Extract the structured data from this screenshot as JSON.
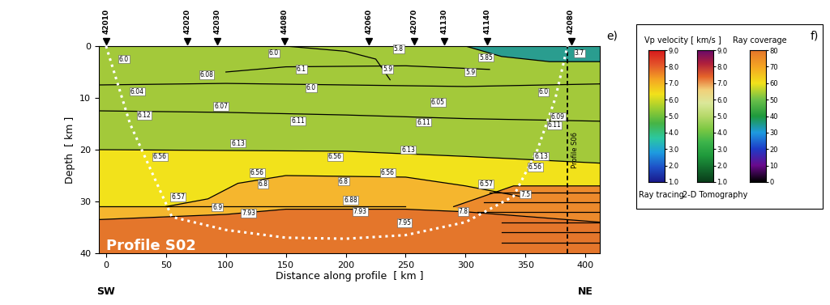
{
  "chart_data": {
    "type": "velocity_model",
    "title": "Profile S02",
    "x_label": "Distance along profile  [ km ]",
    "y_label": "Depth  [ km ]",
    "xlim": [
      -6,
      412
    ],
    "ylim": [
      40,
      0
    ],
    "xticks": [
      0,
      50,
      100,
      150,
      200,
      250,
      300,
      350,
      400
    ],
    "yticks": [
      0,
      10,
      20,
      30,
      40
    ],
    "ends": {
      "left": "SW",
      "right": "NE"
    },
    "panel_labels": [
      "e)",
      "f)"
    ],
    "stations": [
      {
        "name": "42010",
        "x": 0
      },
      {
        "name": "42020",
        "x": 68
      },
      {
        "name": "42030",
        "x": 93
      },
      {
        "name": "44080",
        "x": 149
      },
      {
        "name": "42060",
        "x": 219
      },
      {
        "name": "42070",
        "x": 257
      },
      {
        "name": "41130",
        "x": 282
      },
      {
        "name": "41140",
        "x": 318
      },
      {
        "name": "42080",
        "x": 388
      }
    ],
    "regions": [
      {
        "color": "#a3c93a",
        "points": [
          [
            -6,
            0
          ],
          [
            412,
            0
          ],
          [
            412,
            22.6
          ],
          [
            300,
            21.3
          ],
          [
            200,
            20.3
          ],
          [
            -6,
            20
          ]
        ]
      },
      {
        "color": "#f2e21b",
        "points": [
          [
            -6,
            20
          ],
          [
            200,
            20.3
          ],
          [
            300,
            21.3
          ],
          [
            412,
            22.6
          ],
          [
            412,
            29
          ],
          [
            250,
            31
          ],
          [
            -6,
            31
          ]
        ]
      },
      {
        "color": "#f5b62e",
        "points": [
          [
            -6,
            31
          ],
          [
            50,
            31
          ],
          [
            85,
            29.5
          ],
          [
            110,
            26.5
          ],
          [
            150,
            25
          ],
          [
            250,
            25.3
          ],
          [
            300,
            27
          ],
          [
            345,
            29
          ],
          [
            412,
            29
          ],
          [
            412,
            34
          ],
          [
            300,
            32
          ],
          [
            250,
            31.5
          ],
          [
            150,
            31.5
          ],
          [
            100,
            32.5
          ],
          [
            -6,
            33.5
          ]
        ]
      },
      {
        "color": "#e4762b",
        "points": [
          [
            -6,
            33.5
          ],
          [
            100,
            32.5
          ],
          [
            150,
            31.5
          ],
          [
            250,
            31.5
          ],
          [
            300,
            32
          ],
          [
            412,
            34
          ],
          [
            412,
            40
          ],
          [
            -6,
            40
          ]
        ]
      },
      {
        "color": "#ec8a2c",
        "points": [
          [
            290,
            31
          ],
          [
            340,
            27
          ],
          [
            412,
            27
          ],
          [
            412,
            34
          ],
          [
            300,
            32
          ]
        ]
      },
      {
        "color": "#2a9d8f",
        "points": [
          [
            300,
            0
          ],
          [
            330,
            2
          ],
          [
            370,
            3
          ],
          [
            412,
            3
          ],
          [
            412,
            0
          ]
        ]
      }
    ],
    "boundaries": [
      [
        [
          -6,
          7.5
        ],
        [
          100,
          7.2
        ],
        [
          200,
          7.5
        ],
        [
          300,
          7.8
        ],
        [
          412,
          7.3
        ]
      ],
      [
        [
          -6,
          12.5
        ],
        [
          100,
          12.8
        ],
        [
          200,
          13.3
        ],
        [
          300,
          14
        ],
        [
          412,
          14.5
        ]
      ],
      [
        [
          -6,
          20
        ],
        [
          200,
          20.3
        ],
        [
          300,
          21.3
        ],
        [
          412,
          22.6
        ]
      ],
      [
        [
          50,
          31
        ],
        [
          85,
          29.5
        ],
        [
          110,
          26.5
        ],
        [
          150,
          25
        ],
        [
          250,
          25.3
        ],
        [
          300,
          27
        ],
        [
          345,
          29
        ]
      ],
      [
        [
          -6,
          31
        ],
        [
          120,
          31
        ],
        [
          250,
          31
        ]
      ],
      [
        [
          -6,
          33.5
        ],
        [
          100,
          32.5
        ],
        [
          150,
          31.5
        ],
        [
          250,
          31.5
        ],
        [
          300,
          32
        ],
        [
          412,
          34
        ]
      ],
      [
        [
          290,
          31
        ],
        [
          340,
          27
        ],
        [
          412,
          27
        ]
      ],
      [
        [
          300,
          0
        ],
        [
          330,
          2
        ],
        [
          370,
          3
        ],
        [
          412,
          3
        ]
      ],
      [
        [
          150,
          0
        ],
        [
          200,
          1
        ],
        [
          225,
          2.5
        ],
        [
          237,
          6.5
        ]
      ],
      [
        [
          100,
          5
        ],
        [
          150,
          4
        ],
        [
          250,
          3.8
        ],
        [
          320,
          4.5
        ]
      ],
      [
        [
          320,
          28.3
        ],
        [
          412,
          28.3
        ]
      ],
      [
        [
          315,
          30.2
        ],
        [
          412,
          30.2
        ]
      ],
      [
        [
          310,
          32
        ],
        [
          412,
          32
        ]
      ],
      [
        [
          330,
          34.1
        ],
        [
          412,
          34.1
        ]
      ],
      [
        [
          330,
          35.9
        ],
        [
          412,
          35.9
        ]
      ],
      [
        [
          330,
          38
        ],
        [
          412,
          38
        ]
      ]
    ],
    "coverage_line": [
      [
        0,
        0
      ],
      [
        20,
        15
      ],
      [
        55,
        33
      ],
      [
        100,
        35.5
      ],
      [
        150,
        37
      ],
      [
        200,
        37.2
      ],
      [
        250,
        36.5
      ],
      [
        300,
        34
      ],
      [
        340,
        29
      ],
      [
        360,
        20
      ],
      [
        375,
        10
      ],
      [
        385,
        0
      ]
    ],
    "profile_crossing": {
      "name": "Profile S06",
      "x": 385
    },
    "velocity_labels": [
      {
        "x": 15,
        "depth": 2.5,
        "value": 6.0
      },
      {
        "x": 140,
        "depth": 1.4,
        "value": 6.0
      },
      {
        "x": 244,
        "depth": 0.6,
        "value": 5.8
      },
      {
        "x": 317,
        "depth": 2.2,
        "value": 5.85
      },
      {
        "x": 395,
        "depth": 1.4,
        "value": 3.7
      },
      {
        "x": 163,
        "depth": 4.5,
        "value": 6.1
      },
      {
        "x": 235,
        "depth": 4.5,
        "value": 5.9
      },
      {
        "x": 304,
        "depth": 5.0,
        "value": 5.9
      },
      {
        "x": 84,
        "depth": 5.5,
        "value": 6.08
      },
      {
        "x": 171,
        "depth": 8.1,
        "value": 6.0
      },
      {
        "x": 26,
        "depth": 8.75,
        "value": 6.04
      },
      {
        "x": 96,
        "depth": 11.7,
        "value": 6.07
      },
      {
        "x": 277,
        "depth": 10.9,
        "value": 6.05
      },
      {
        "x": 365,
        "depth": 8.9,
        "value": 6.0
      },
      {
        "x": 32,
        "depth": 13.4,
        "value": 6.12
      },
      {
        "x": 160,
        "depth": 14.5,
        "value": 6.11
      },
      {
        "x": 265,
        "depth": 14.7,
        "value": 6.11
      },
      {
        "x": 377,
        "depth": 13.6,
        "value": 6.09
      },
      {
        "x": 374,
        "depth": 15.3,
        "value": 6.11
      },
      {
        "x": 110,
        "depth": 18.75,
        "value": 6.13
      },
      {
        "x": 252,
        "depth": 20.0,
        "value": 6.13
      },
      {
        "x": 363,
        "depth": 21.25,
        "value": 6.13
      },
      {
        "x": 45,
        "depth": 21.4,
        "value": 6.56
      },
      {
        "x": 191,
        "depth": 21.4,
        "value": 6.56
      },
      {
        "x": 358,
        "depth": 23.3,
        "value": 6.56
      },
      {
        "x": 126,
        "depth": 24.5,
        "value": 6.56
      },
      {
        "x": 235,
        "depth": 24.4,
        "value": 6.56
      },
      {
        "x": 131,
        "depth": 26.6,
        "value": 6.8
      },
      {
        "x": 198,
        "depth": 26.1,
        "value": 6.8
      },
      {
        "x": 317,
        "depth": 26.7,
        "value": 6.57
      },
      {
        "x": 350,
        "depth": 28.6,
        "value": 7.5
      },
      {
        "x": 60,
        "depth": 29.2,
        "value": 6.57
      },
      {
        "x": 204,
        "depth": 29.8,
        "value": 6.88
      },
      {
        "x": 93,
        "depth": 31.1,
        "value": 6.9
      },
      {
        "x": 119,
        "depth": 32.3,
        "value": 7.93
      },
      {
        "x": 212,
        "depth": 31.9,
        "value": 7.93
      },
      {
        "x": 298,
        "depth": 31.9,
        "value": 7.8
      },
      {
        "x": 249,
        "depth": 34.2,
        "value": 7.95
      }
    ],
    "colorbars": {
      "velocity_title": "Vp velocity [ km/s ]",
      "bars": [
        {
          "name": "Ray tracing",
          "range": [
            1,
            9
          ],
          "ticks": [
            {
              "value": 1,
              "label": "1.0"
            },
            {
              "value": 2,
              "label": "2.0"
            },
            {
              "value": 3,
              "label": "3.0"
            },
            {
              "value": 4,
              "label": "4.0"
            },
            {
              "value": 5,
              "label": "5.0"
            },
            {
              "value": 6,
              "label": "6.0"
            },
            {
              "value": 7,
              "label": "7.0"
            },
            {
              "value": 8,
              "label": "8.0"
            },
            {
              "value": 9,
              "label": "9.0"
            }
          ],
          "colors": [
            "#1a1a8c",
            "#1e50c8",
            "#1e9be0",
            "#2cc8a0",
            "#46b446",
            "#9acd32",
            "#f2e21b",
            "#f5a623",
            "#e4562b",
            "#d7191c"
          ]
        },
        {
          "name": "2-D Tomography",
          "range": [
            1,
            9
          ],
          "ticks": [
            {
              "value": 1,
              "label": "1.0"
            },
            {
              "value": 2,
              "label": "2.0"
            },
            {
              "value": 3,
              "label": "3.0"
            },
            {
              "value": 4,
              "label": "4.0"
            },
            {
              "value": 5,
              "label": "5.0"
            },
            {
              "value": 6,
              "label": "6.0"
            },
            {
              "value": 7,
              "label": "7.0"
            },
            {
              "value": 8,
              "label": "8.0"
            },
            {
              "value": 9,
              "label": "9.0"
            }
          ],
          "colors": [
            "#0a3d1a",
            "#136b2d",
            "#1f9a3c",
            "#3cb44b",
            "#7cc843",
            "#b6d96a",
            "#dbe89a",
            "#f2d07a",
            "#e6652a",
            "#b0203c",
            "#6a0a6a"
          ]
        },
        {
          "name": "Ray coverage",
          "range": [
            0,
            80
          ],
          "ticks": [
            0,
            10,
            20,
            30,
            40,
            50,
            60,
            70,
            80
          ],
          "colors": [
            "#000000",
            "#6a0a8c",
            "#1f3bc8",
            "#1e9be0",
            "#1f9a3c",
            "#6cc04a",
            "#f2e21b",
            "#f5a623",
            "#e4762b"
          ]
        }
      ]
    }
  }
}
